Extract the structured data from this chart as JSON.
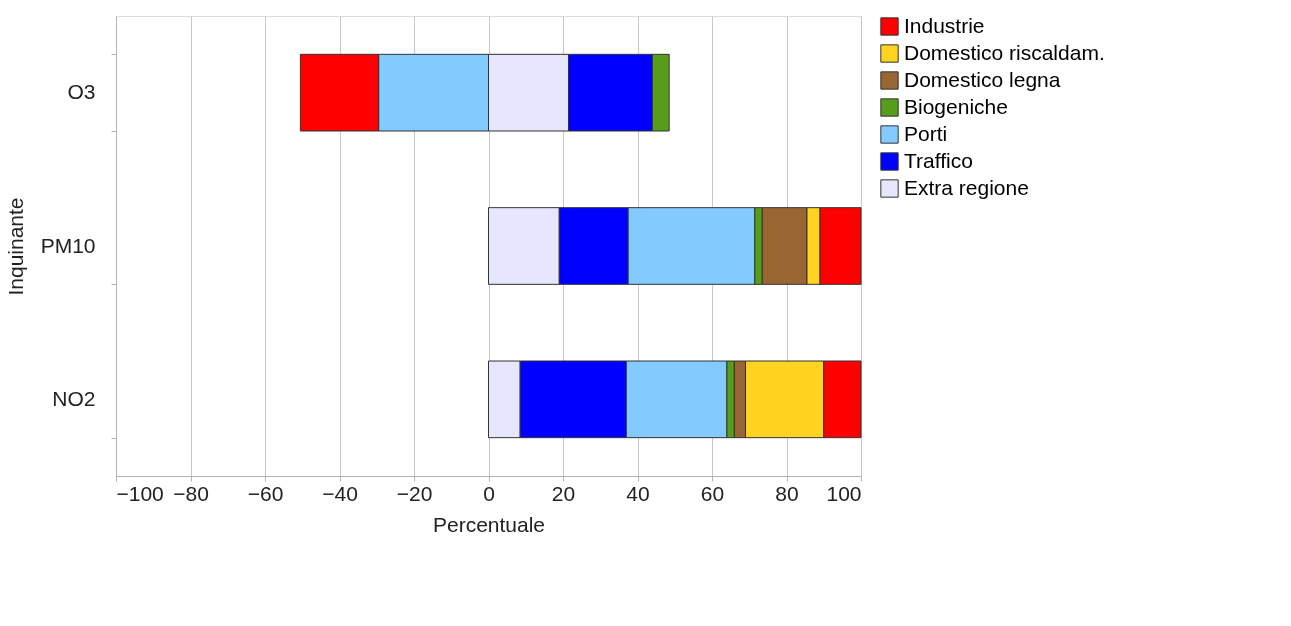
{
  "chart_data": {
    "type": "bar",
    "orientation": "horizontal",
    "stacked": true,
    "categories": [
      "O3",
      "PM10",
      "NO2"
    ],
    "xlabel": "Percentuale",
    "ylabel": "Inquinante",
    "xlim": [
      -100,
      100
    ],
    "xticks": [
      -100,
      -80,
      -60,
      -40,
      -20,
      0,
      20,
      40,
      60,
      80,
      100
    ],
    "grid": "x",
    "legend": "right",
    "series": [
      {
        "name": "Extra regione",
        "color": "#e6e6ff",
        "values": [
          21.5,
          19,
          8.5
        ]
      },
      {
        "name": "Traffico",
        "color": "#0000ff",
        "values": [
          22.5,
          18.5,
          28.5
        ]
      },
      {
        "name": "Porti",
        "color": "#83caff",
        "values": [
          -29.5,
          34,
          27
        ]
      },
      {
        "name": "Biogeniche",
        "color": "#579d1c",
        "values": [
          4.5,
          2,
          2
        ]
      },
      {
        "name": "Domestico legna",
        "color": "#996633",
        "values": [
          null,
          12,
          3
        ]
      },
      {
        "name": "Domestico riscaldam.",
        "color": "#ffd320",
        "values": [
          null,
          3.5,
          21
        ]
      },
      {
        "name": "Industrie",
        "color": "#ff0000",
        "values": [
          -21,
          11,
          10
        ]
      }
    ]
  }
}
